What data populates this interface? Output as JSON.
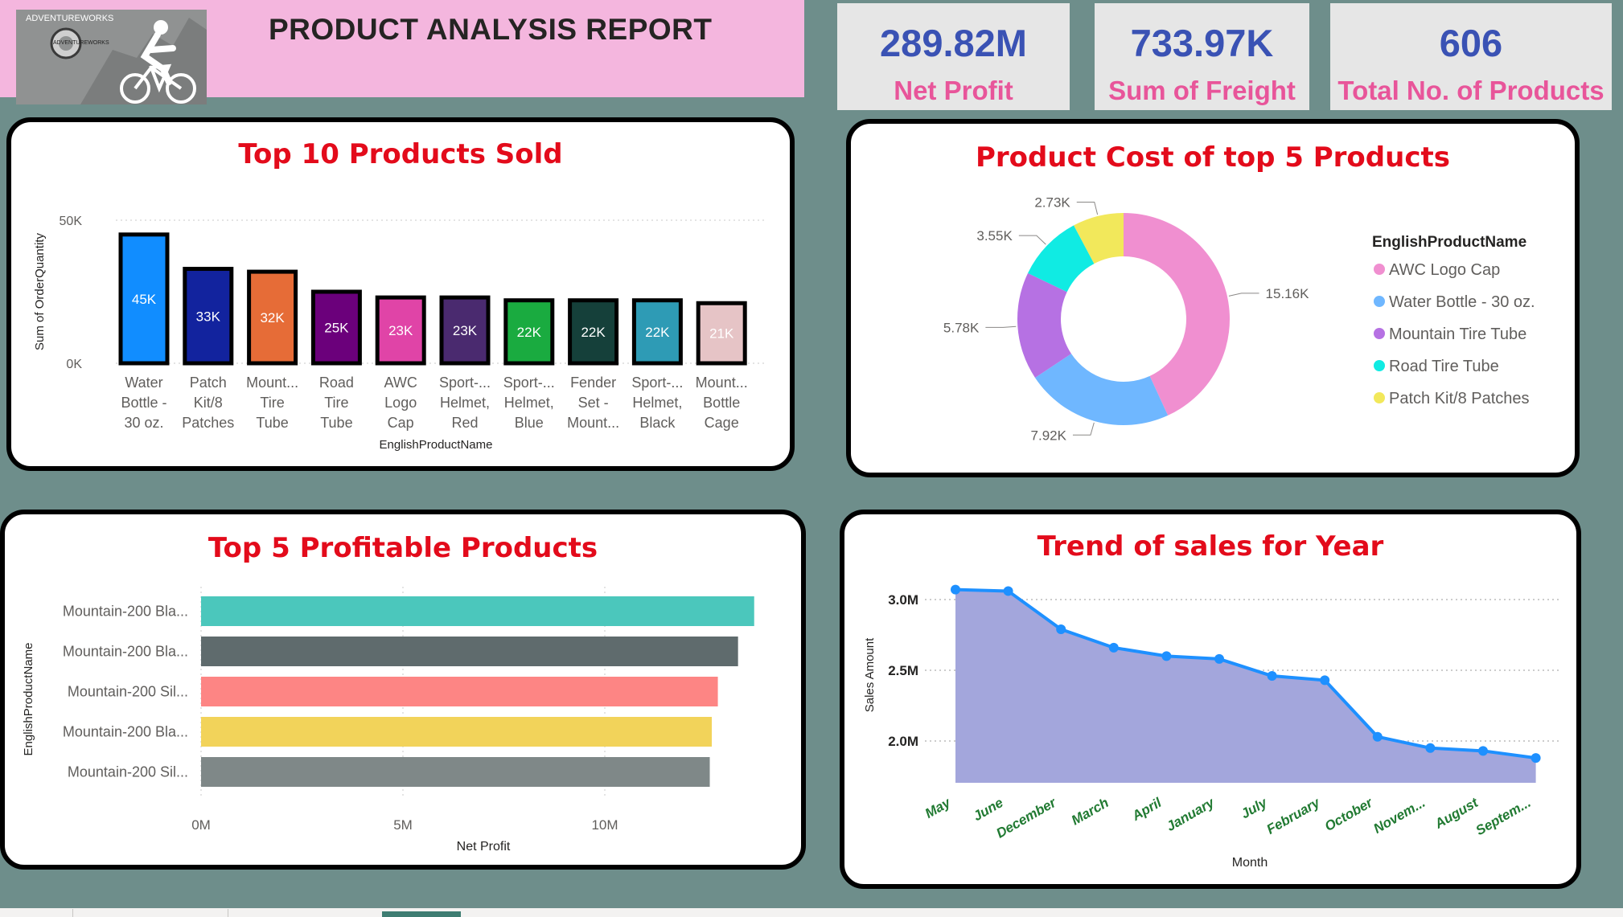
{
  "header": {
    "title": "PRODUCT ANALYSIS REPORT",
    "logo_text": "ADVENTUREWORKS",
    "logo_badge_text": "ADVENTUREWORKS"
  },
  "kpis": [
    {
      "value": "289.82M",
      "label": "Net Profit"
    },
    {
      "value": "733.97K",
      "label": "Sum of Freight"
    },
    {
      "value": "606",
      "label": "Total No. of Products"
    }
  ],
  "colors": {
    "background": "#6e8e8b",
    "header": "#f4b6de",
    "title_red": "#e30b1b",
    "kpi_value": "#3a52b4",
    "kpi_label": "#e8559a",
    "month_label": "#217a32",
    "area_fill": "#a3a6dc",
    "line": "#1e90ff"
  },
  "chart_data": [
    {
      "id": "top10",
      "type": "bar",
      "title": "Top 10 Products Sold",
      "xlabel": "EnglishProductName",
      "ylabel": "Sum of OrderQuantity",
      "ylim": [
        0,
        50000
      ],
      "yticks": [
        {
          "value": 0,
          "label": "0K"
        },
        {
          "value": 50000,
          "label": "50K"
        }
      ],
      "grid": true,
      "categories": [
        [
          "Water",
          "Bottle -",
          "30 oz."
        ],
        [
          "Patch",
          "Kit/8",
          "Patches"
        ],
        [
          "Mount...",
          "Tire",
          "Tube"
        ],
        [
          "Road",
          "Tire",
          "Tube"
        ],
        [
          "AWC",
          "Logo",
          "Cap"
        ],
        [
          "Sport-...",
          "Helmet,",
          "Red"
        ],
        [
          "Sport-...",
          "Helmet,",
          "Blue"
        ],
        [
          "Fender",
          "Set -",
          "Mount..."
        ],
        [
          "Sport-...",
          "Helmet,",
          "Black"
        ],
        [
          "Mount...",
          "Bottle",
          "Cage"
        ]
      ],
      "values": [
        45000,
        33000,
        32000,
        25000,
        23000,
        23000,
        22000,
        22000,
        22000,
        21000
      ],
      "labels": [
        "45K",
        "33K",
        "32K",
        "25K",
        "23K",
        "23K",
        "22K",
        "22K",
        "22K",
        "21K"
      ],
      "colors": [
        "#118dff",
        "#12239e",
        "#e66c37",
        "#6b007b",
        "#e044a7",
        "#4a2a6f",
        "#1aab40",
        "#15403a",
        "#2e9bb5",
        "#e6c4c6"
      ]
    },
    {
      "id": "cost5",
      "type": "pie",
      "title": "Product Cost of top 5 Products",
      "legend_title": "EnglishProductName",
      "legend_position": "right",
      "categories": [
        "AWC Logo Cap",
        "Water Bottle - 30 oz.",
        "Mountain Tire Tube",
        "Road Tire Tube",
        "Patch Kit/8 Patches"
      ],
      "values": [
        15160,
        7920,
        5780,
        3550,
        2730
      ],
      "labels": [
        "15.16K",
        "7.92K",
        "5.78K",
        "3.55K",
        "2.73K"
      ],
      "colors": [
        "#f08fd0",
        "#6fb7ff",
        "#b671e3",
        "#10ebe3",
        "#f2e85b"
      ]
    },
    {
      "id": "profit5",
      "type": "bar",
      "orientation": "horizontal",
      "title": "Top 5 Profitable Products",
      "xlabel": "Net Profit",
      "ylabel": "EnglishProductName",
      "xlim": [
        0,
        13000000
      ],
      "xticks": [
        {
          "value": 0,
          "label": "0M"
        },
        {
          "value": 5000000,
          "label": "5M"
        },
        {
          "value": 10000000,
          "label": "10M"
        }
      ],
      "grid": true,
      "categories": [
        "Mountain-200 Bla...",
        "Mountain-200 Bla...",
        "Mountain-200 Sil...",
        "Mountain-200 Bla...",
        "Mountain-200 Sil..."
      ],
      "values": [
        13700000,
        13300000,
        12800000,
        12650000,
        12600000
      ],
      "colors": [
        "#4bc7bc",
        "#5f6b6d",
        "#fd8584",
        "#f2d35a",
        "#7f8888"
      ]
    },
    {
      "id": "trend",
      "type": "area",
      "title": "Trend of sales for Year",
      "xlabel": "Month",
      "ylabel": "Sales Amount",
      "ylim": [
        1800000,
        3100000
      ],
      "yticks": [
        {
          "value": 2000000,
          "label": "2.0M"
        },
        {
          "value": 2500000,
          "label": "2.5M"
        },
        {
          "value": 3000000,
          "label": "3.0M"
        }
      ],
      "grid": true,
      "categories": [
        "May",
        "June",
        "December",
        "March",
        "April",
        "January",
        "July",
        "February",
        "October",
        "Novem...",
        "August",
        "Septem..."
      ],
      "values": [
        3070000,
        3060000,
        2790000,
        2660000,
        2600000,
        2580000,
        2460000,
        2430000,
        2030000,
        1950000,
        1930000,
        1880000
      ]
    }
  ]
}
